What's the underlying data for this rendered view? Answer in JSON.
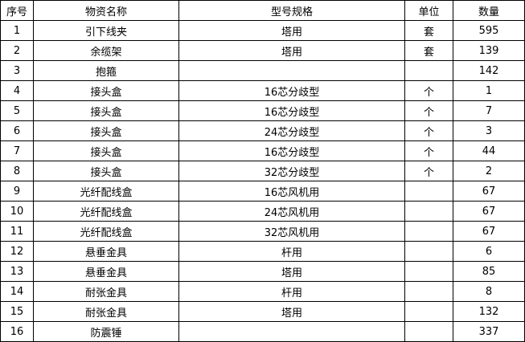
{
  "headers": [
    "序号",
    "物资名称",
    "型号规格",
    "单位",
    "数量"
  ],
  "rows": [
    [
      "1",
      "引下线夹",
      "塔用",
      "套",
      "595"
    ],
    [
      "2",
      "余缆架",
      "塔用",
      "套",
      "139"
    ],
    [
      "3",
      "抱箍",
      "",
      "",
      "142"
    ],
    [
      "4",
      "接头盒",
      "16芯分歧型",
      "个",
      "1"
    ],
    [
      "5",
      "接头盒",
      "16芯分歧型",
      "个",
      "7"
    ],
    [
      "6",
      "接头盒",
      "24芯分歧型",
      "个",
      "3"
    ],
    [
      "7",
      "接头盒",
      "16芯分歧型",
      "个",
      "44"
    ],
    [
      "8",
      "接头盒",
      "32芯分歧型",
      "个",
      "2"
    ],
    [
      "9",
      "光纤配线盒",
      "16芯风机用",
      "",
      "67"
    ],
    [
      "10",
      "光纤配线盒",
      "24芯风机用",
      "",
      "67"
    ],
    [
      "11",
      "光纤配线盒",
      "32芯风机用",
      "",
      "67"
    ],
    [
      "12",
      "悬垂金具",
      "杆用",
      "",
      "6"
    ],
    [
      "13",
      "悬垂金具",
      "塔用",
      "",
      "85"
    ],
    [
      "14",
      "耐张金具",
      "杆用",
      "",
      "8"
    ],
    [
      "15",
      "耐张金具",
      "塔用",
      "",
      "132"
    ],
    [
      "16",
      "防震锤",
      "",
      "",
      "337"
    ]
  ]
}
